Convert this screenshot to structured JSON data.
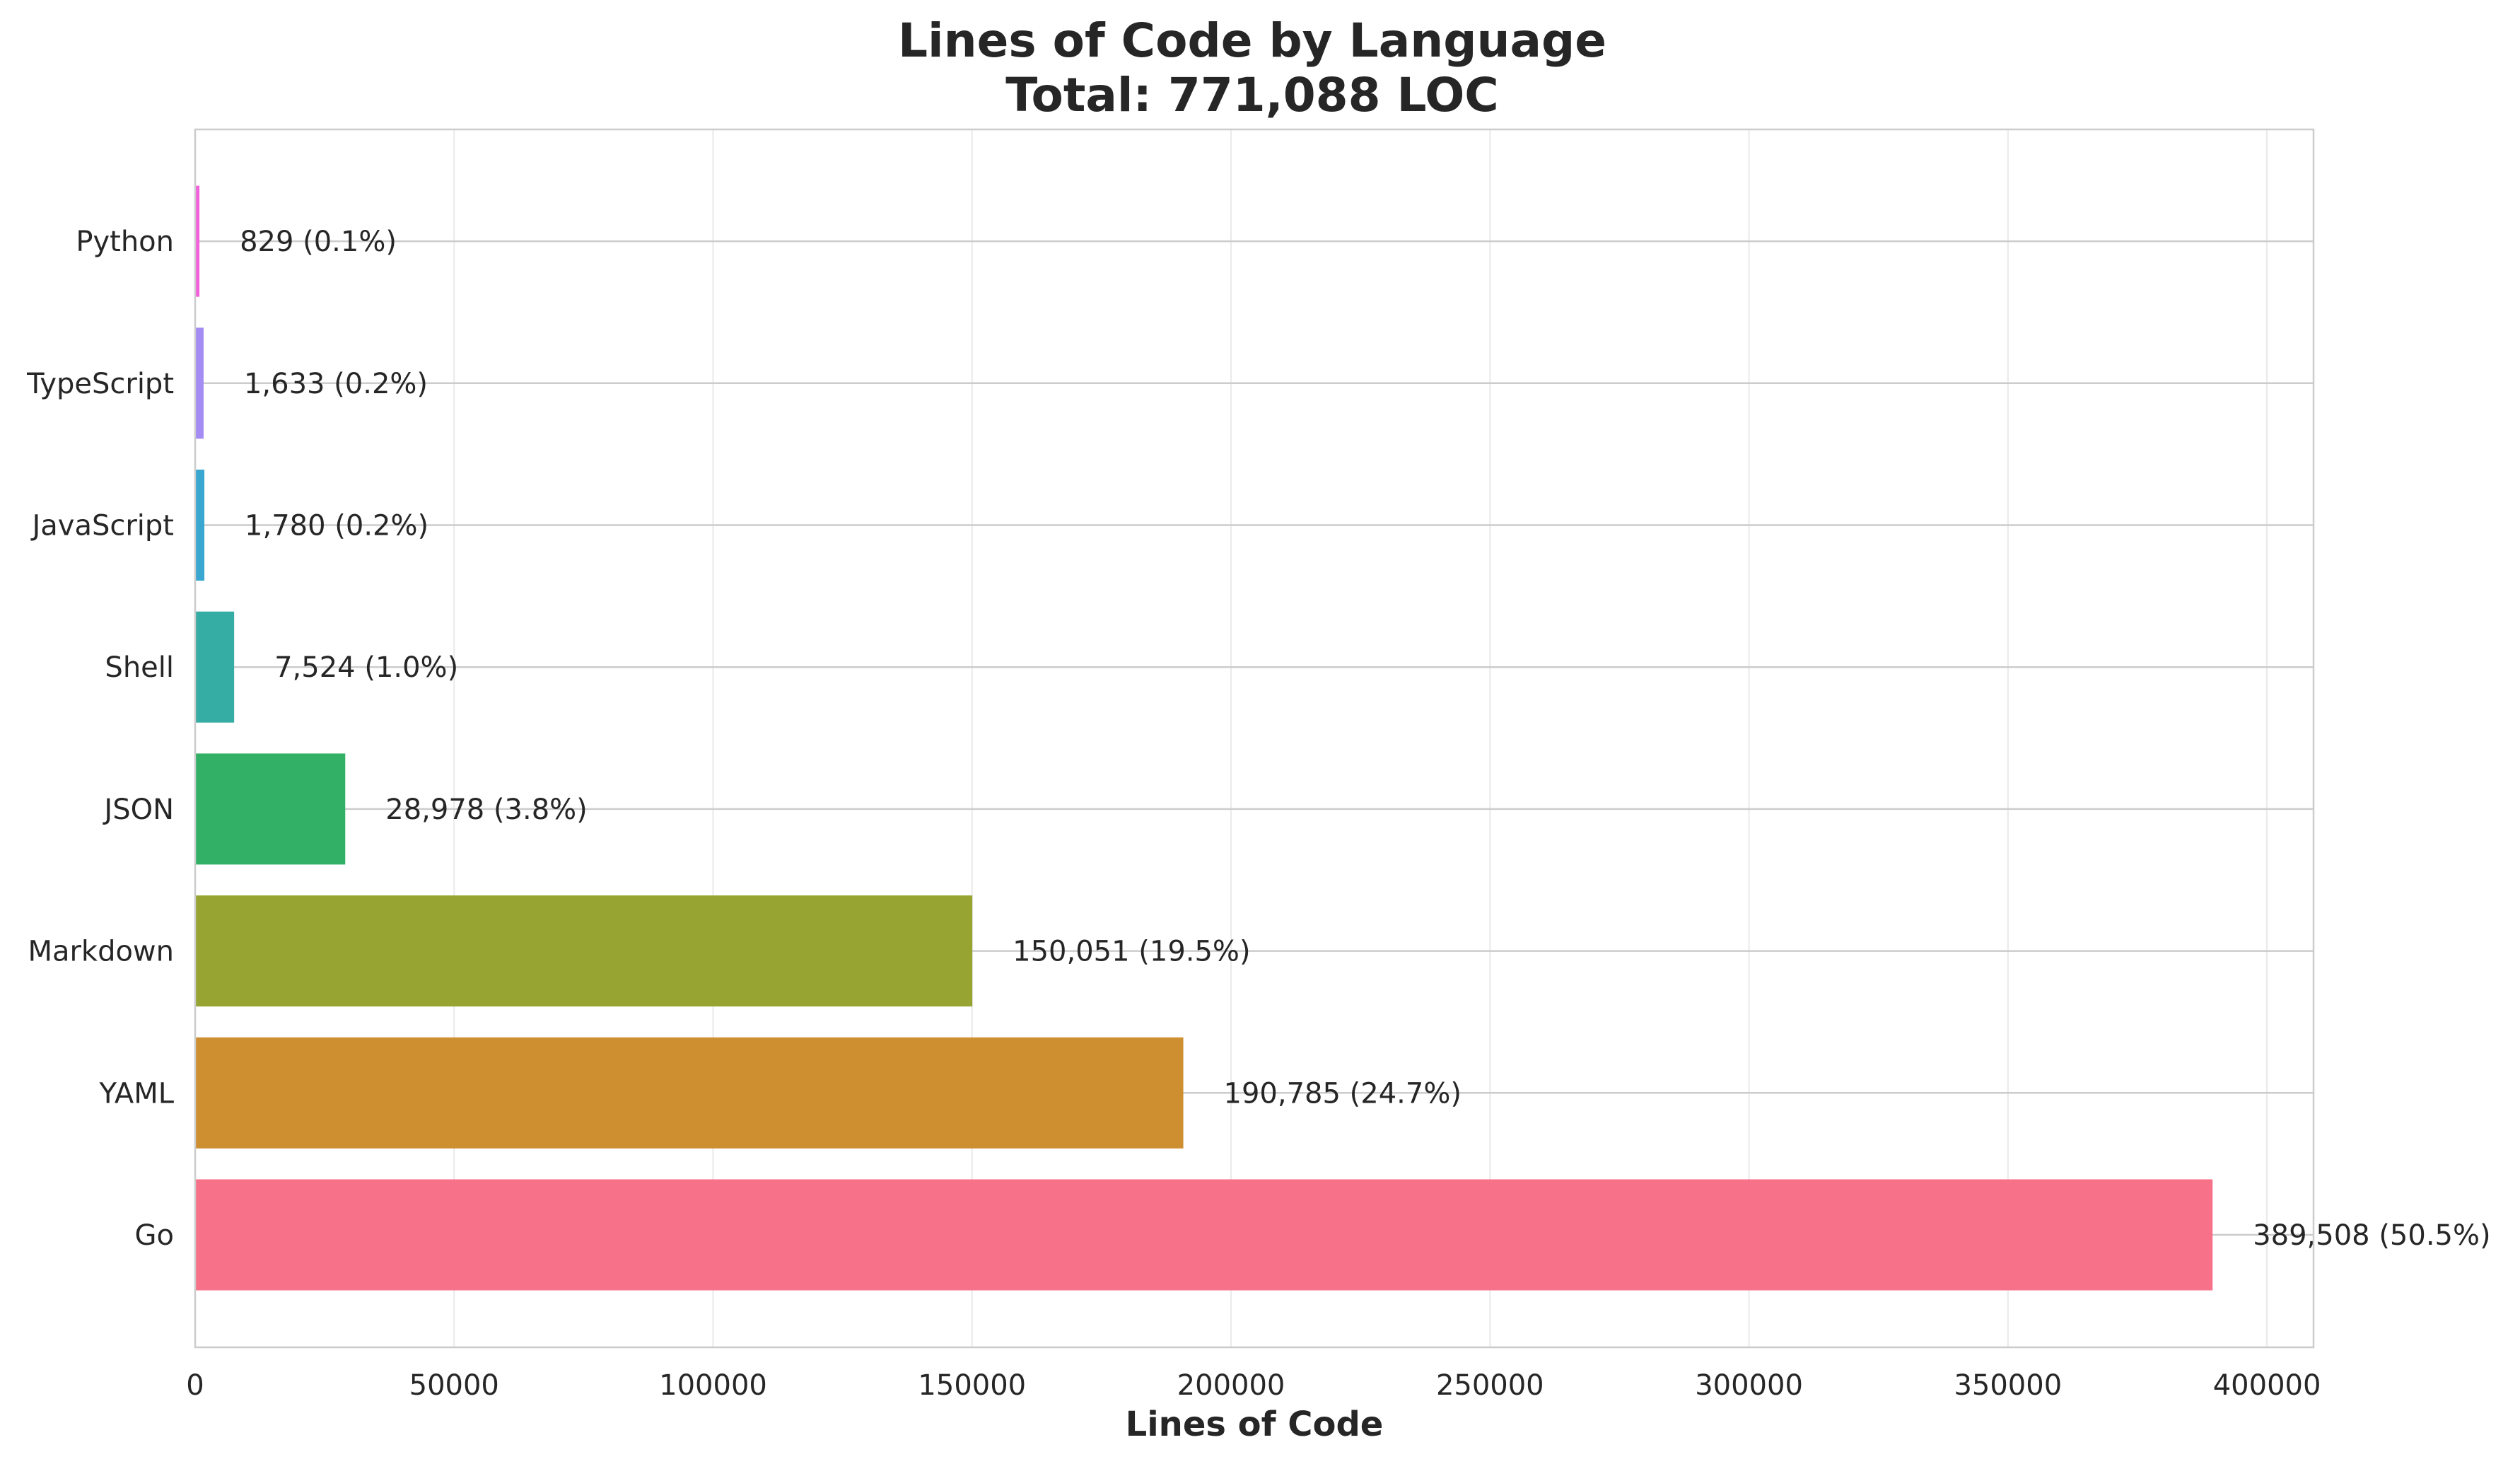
{
  "chart_data": {
    "type": "bar",
    "orientation": "horizontal",
    "title": "Lines of Code by Language",
    "subtitle": "Total: 771,088 LOC",
    "xlabel": "Lines of Code",
    "ylabel": "",
    "xlim": [
      0,
      409000
    ],
    "xticks": [
      0,
      50000,
      100000,
      150000,
      200000,
      250000,
      300000,
      350000,
      400000
    ],
    "grid": true,
    "categories": [
      "Go",
      "YAML",
      "Markdown",
      "JSON",
      "Shell",
      "JavaScript",
      "TypeScript",
      "Python"
    ],
    "values": [
      389508,
      190785,
      150051,
      28978,
      7524,
      1780,
      1633,
      829
    ],
    "labels": [
      "389,508 (50.5%)",
      "190,785 (24.7%)",
      "150,051 (19.5%)",
      "28,978 (3.8%)",
      "7,524 (1.0%)",
      "1,780 (0.2%)",
      "1,633 (0.2%)",
      "829 (0.1%)"
    ],
    "colors": [
      "#f77189",
      "#ce8f31",
      "#97a431",
      "#32b166",
      "#36ada4",
      "#39a7d0",
      "#a48cf4",
      "#f561dd"
    ]
  }
}
